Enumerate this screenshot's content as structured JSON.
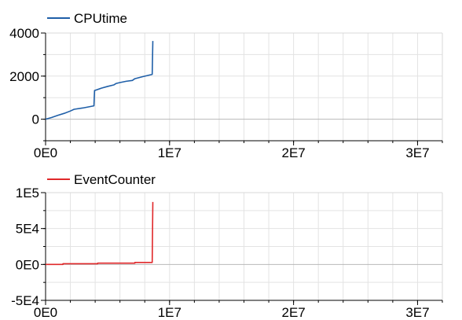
{
  "chart_data": [
    {
      "type": "line",
      "legend_placement": "top-left",
      "grid": true,
      "xlim": [
        0,
        32000000
      ],
      "ylim": [
        -1000,
        4000
      ],
      "x_ticks": [
        {
          "value": 0,
          "label": "0E0"
        },
        {
          "value": 10000000,
          "label": "1E7"
        },
        {
          "value": 20000000,
          "label": "2E7"
        },
        {
          "value": 30000000,
          "label": "3E7"
        }
      ],
      "y_ticks": [
        {
          "value": 0,
          "label": "0"
        },
        {
          "value": 2000,
          "label": "2000"
        },
        {
          "value": 4000,
          "label": "4000"
        }
      ],
      "series": [
        {
          "name": "CPUtime",
          "color": "#1f5fa8",
          "x": [
            0,
            500000,
            1000000,
            1500000,
            2000000,
            2300000,
            3000000,
            3900000,
            3950000,
            4100000,
            4500000,
            5000000,
            5500000,
            5700000,
            6000000,
            6500000,
            7000000,
            7200000,
            7800000,
            8600000,
            8650000
          ],
          "y": [
            0,
            80,
            180,
            270,
            380,
            460,
            520,
            620,
            1330,
            1360,
            1440,
            1520,
            1590,
            1660,
            1700,
            1760,
            1800,
            1880,
            1970,
            2080,
            3630
          ]
        }
      ]
    },
    {
      "type": "line",
      "legend_placement": "top-left",
      "grid": true,
      "xlim": [
        0,
        32000000
      ],
      "ylim": [
        -50000,
        100000
      ],
      "x_ticks": [
        {
          "value": 0,
          "label": "0E0"
        },
        {
          "value": 10000000,
          "label": "1E7"
        },
        {
          "value": 20000000,
          "label": "2E7"
        },
        {
          "value": 30000000,
          "label": "3E7"
        }
      ],
      "y_ticks": [
        {
          "value": -50000,
          "label": "-5E4"
        },
        {
          "value": 0,
          "label": "0E0"
        },
        {
          "value": 50000,
          "label": "5E4"
        },
        {
          "value": 100000,
          "label": "1E5"
        }
      ],
      "series": [
        {
          "name": "EventCounter",
          "color": "#e0282a",
          "x": [
            0,
            1400000,
            1400000,
            4200000,
            4200000,
            7200000,
            7200000,
            8600000,
            8650000
          ],
          "y": [
            0,
            0,
            1000,
            1000,
            1800,
            1800,
            2800,
            2800,
            87000
          ]
        }
      ]
    }
  ]
}
